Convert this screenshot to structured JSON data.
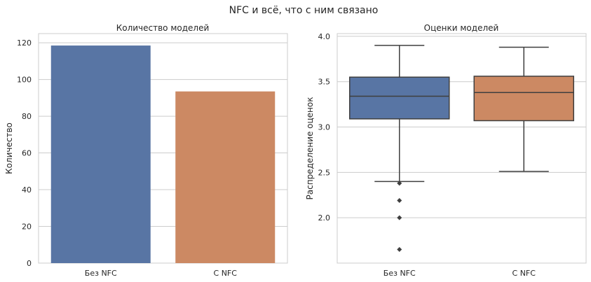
{
  "suptitle": "NFC и всё, что с ним связано",
  "chart_data": [
    {
      "type": "bar",
      "title": "Количество моделей",
      "xlabel": "",
      "ylabel": "Количество",
      "categories": [
        "Без NFC",
        "С NFC"
      ],
      "values": [
        118.5,
        93.5
      ],
      "ylim": [
        0,
        125
      ],
      "yticks": [
        0,
        20,
        40,
        60,
        80,
        100,
        120
      ],
      "grid": true,
      "colors": [
        "#5875a4",
        "#cc8963"
      ]
    },
    {
      "type": "box",
      "title": "Оценки моделей",
      "xlabel": "",
      "ylabel": "Распределение оценок",
      "categories": [
        "Без NFC",
        "С NFC"
      ],
      "series": [
        {
          "min": 2.4,
          "q1": 3.09,
          "median": 3.34,
          "q3": 3.55,
          "max": 3.9,
          "outliers": [
            2.38,
            2.19,
            2.0,
            1.65
          ]
        },
        {
          "min": 2.51,
          "q1": 3.07,
          "median": 3.38,
          "q3": 3.56,
          "max": 3.88,
          "outliers": []
        }
      ],
      "ylim": [
        1.5,
        4.03
      ],
      "yticks": [
        2.0,
        2.5,
        3.0,
        3.5,
        4.0
      ],
      "grid": true,
      "colors": [
        "#5875a4",
        "#cc8963"
      ]
    }
  ]
}
